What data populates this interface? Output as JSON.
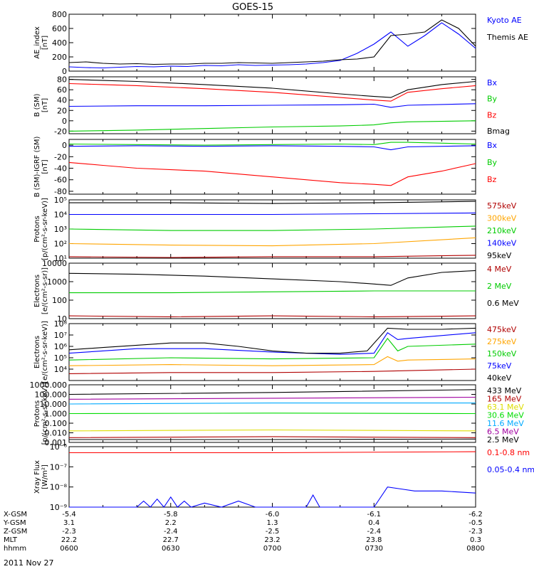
{
  "title": "GOES-15",
  "date": "2011 Nov 27",
  "colors": {
    "black": "#000000",
    "red": "#ff0000",
    "green": "#00cc00",
    "blue": "#0000ff",
    "orange": "#ffa500",
    "darkred": "#b00000",
    "yellow": "#dddd00",
    "lightgreen": "#00dd00",
    "cyan": "#00aaff",
    "purple": "#a000a0"
  },
  "ephemeris": {
    "row_labels": [
      "X-GSM",
      "Y-GSM",
      "Z-GSM",
      "MLT",
      "hhmm"
    ],
    "columns": [
      [
        "-5.4",
        "3.1",
        "-2.3",
        "22.2",
        "0600"
      ],
      [
        "-5.8",
        "2.2",
        "-2.4",
        "22.7",
        "0630"
      ],
      [
        "-6.0",
        "1.3",
        "-2.5",
        "23.2",
        "0700"
      ],
      [
        "-6.1",
        "0.4",
        "-2.4",
        "23.8",
        "0730"
      ],
      [
        "-6.2",
        "-0.5",
        "-2.3",
        "0.3",
        "0800"
      ]
    ]
  },
  "chart_data": [
    {
      "type": "line",
      "ylabel": [
        "AE_index",
        "[nT]"
      ],
      "ylim": [
        0,
        800
      ],
      "yticks": [
        {
          "v": 0,
          "t": "0"
        },
        {
          "v": 200,
          "t": "200"
        },
        {
          "v": 400,
          "t": "400"
        },
        {
          "v": 600,
          "t": "600"
        },
        {
          "v": 800,
          "t": "800"
        }
      ],
      "series": [
        {
          "name": "Kyoto AE",
          "color": "#0000ff",
          "x": [
            0,
            5,
            10,
            15,
            20,
            25,
            30,
            35,
            40,
            45,
            50,
            55,
            60,
            65,
            70,
            75,
            80,
            85,
            90,
            95,
            100,
            105,
            110,
            115,
            120
          ],
          "values": [
            60,
            50,
            45,
            55,
            65,
            60,
            70,
            65,
            80,
            75,
            90,
            80,
            85,
            90,
            100,
            120,
            150,
            250,
            380,
            550,
            350,
            500,
            680,
            520,
            320
          ]
        },
        {
          "name": "Themis AE",
          "color": "#000000",
          "x": [
            0,
            5,
            10,
            15,
            20,
            25,
            30,
            35,
            40,
            45,
            50,
            55,
            60,
            65,
            70,
            75,
            80,
            85,
            90,
            95,
            100,
            105,
            110,
            115,
            120
          ],
          "values": [
            120,
            130,
            110,
            100,
            105,
            95,
            100,
            100,
            110,
            110,
            120,
            115,
            110,
            120,
            130,
            140,
            160,
            170,
            200,
            500,
            520,
            550,
            720,
            600,
            350
          ]
        }
      ]
    },
    {
      "type": "line",
      "ylabel": [
        "B (SM)",
        "[nT]"
      ],
      "ylim": [
        -25,
        85
      ],
      "yticks": [
        {
          "v": -20,
          "t": "-20"
        },
        {
          "v": 0,
          "t": "0"
        },
        {
          "v": 20,
          "t": "20"
        },
        {
          "v": 40,
          "t": "40"
        },
        {
          "v": 60,
          "t": "60"
        },
        {
          "v": 80,
          "t": "80"
        }
      ],
      "series": [
        {
          "name": "Bx",
          "color": "#0000ff",
          "x": [
            0,
            20,
            40,
            60,
            80,
            90,
            95,
            100,
            120
          ],
          "values": [
            28,
            29,
            29,
            30,
            31,
            32,
            26,
            30,
            33
          ]
        },
        {
          "name": "By",
          "color": "#00cc00",
          "x": [
            0,
            20,
            40,
            60,
            80,
            90,
            95,
            100,
            120
          ],
          "values": [
            -20,
            -18,
            -15,
            -12,
            -10,
            -8,
            -4,
            -2,
            0
          ]
        },
        {
          "name": "Bz",
          "color": "#ff0000",
          "x": [
            0,
            10,
            20,
            40,
            60,
            80,
            90,
            95,
            100,
            110,
            120
          ],
          "values": [
            72,
            70,
            68,
            62,
            55,
            45,
            40,
            38,
            55,
            62,
            68
          ]
        },
        {
          "name": "Bmag",
          "color": "#000000",
          "x": [
            0,
            10,
            20,
            40,
            60,
            80,
            90,
            95,
            100,
            110,
            120
          ],
          "values": [
            80,
            78,
            76,
            70,
            63,
            52,
            47,
            45,
            60,
            70,
            76
          ]
        }
      ]
    },
    {
      "type": "line",
      "ylabel": [
        "B (SM)-IGRF (SM)",
        "[nT]"
      ],
      "ylim": [
        -85,
        10
      ],
      "yticks": [
        {
          "v": -80,
          "t": "-80"
        },
        {
          "v": -60,
          "t": "-60"
        },
        {
          "v": -40,
          "t": "-40"
        },
        {
          "v": -20,
          "t": "-20"
        },
        {
          "v": 0,
          "t": "0"
        }
      ],
      "series": [
        {
          "name": "Bx",
          "color": "#0000ff",
          "x": [
            0,
            20,
            40,
            60,
            80,
            90,
            95,
            100,
            120
          ],
          "values": [
            -2,
            -1,
            -2,
            -1,
            -2,
            -3,
            -8,
            -3,
            -1
          ]
        },
        {
          "name": "By",
          "color": "#00cc00",
          "x": [
            0,
            20,
            40,
            60,
            80,
            90,
            95,
            100,
            120
          ],
          "values": [
            2,
            1,
            0,
            1,
            2,
            1,
            5,
            5,
            2
          ]
        },
        {
          "name": "Bz",
          "color": "#ff0000",
          "x": [
            0,
            10,
            20,
            40,
            60,
            80,
            90,
            95,
            100,
            110,
            120
          ],
          "values": [
            -30,
            -35,
            -40,
            -45,
            -55,
            -65,
            -68,
            -70,
            -55,
            -45,
            -32
          ]
        }
      ]
    },
    {
      "type": "line",
      "log": true,
      "ylabel": [
        "Protons",
        "[p/(cm²-s-sr-keV)]"
      ],
      "ylim": [
        1,
        5
      ],
      "yticks": [
        {
          "v": 1,
          "t": "10¹"
        },
        {
          "v": 2,
          "t": "10²"
        },
        {
          "v": 3,
          "t": "10³"
        },
        {
          "v": 4,
          "t": "10⁴"
        },
        {
          "v": 5,
          "t": "10⁵"
        }
      ],
      "series": [
        {
          "name": "575keV",
          "color": "#b00000",
          "x": [
            0,
            30,
            60,
            90,
            120
          ],
          "values": [
            1.1,
            1.05,
            1.1,
            1.1,
            1.2
          ]
        },
        {
          "name": "300keV",
          "color": "#ffa500",
          "x": [
            0,
            30,
            60,
            90,
            120
          ],
          "values": [
            2.0,
            1.9,
            1.85,
            2.0,
            2.4
          ]
        },
        {
          "name": "210keV",
          "color": "#00cc00",
          "x": [
            0,
            30,
            60,
            90,
            120
          ],
          "values": [
            3.0,
            2.9,
            2.9,
            3.0,
            3.2
          ]
        },
        {
          "name": "140keV",
          "color": "#0000ff",
          "x": [
            0,
            30,
            60,
            90,
            120
          ],
          "values": [
            4.0,
            4.0,
            4.0,
            4.05,
            4.1
          ]
        },
        {
          "name": "95keV",
          "color": "#000000",
          "x": [
            0,
            30,
            60,
            90,
            120
          ],
          "values": [
            4.8,
            4.8,
            4.75,
            4.8,
            4.9
          ]
        }
      ]
    },
    {
      "type": "line",
      "log": true,
      "ylabel": [
        "Electrons",
        "[e/(cm²-s-sr)]"
      ],
      "ylim": [
        1,
        4
      ],
      "yticks": [
        {
          "v": 1,
          "t": "10"
        },
        {
          "v": 2,
          "t": "100"
        },
        {
          "v": 3,
          "t": "1000"
        },
        {
          "v": 4,
          "t": "10000"
        }
      ],
      "series": [
        {
          "name": "4 MeV",
          "color": "#b00000",
          "x": [
            0,
            30,
            60,
            90,
            120
          ],
          "values": [
            1.15,
            1.1,
            1.15,
            1.1,
            1.15
          ]
        },
        {
          "name": "2 MeV",
          "color": "#00cc00",
          "x": [
            0,
            30,
            60,
            90,
            120
          ],
          "values": [
            2.4,
            2.4,
            2.45,
            2.5,
            2.5
          ]
        },
        {
          "name": "0.6 MeV",
          "color": "#000000",
          "x": [
            0,
            20,
            40,
            60,
            80,
            88,
            95,
            100,
            110,
            120
          ],
          "values": [
            3.45,
            3.4,
            3.3,
            3.15,
            3.0,
            2.9,
            2.8,
            3.2,
            3.5,
            3.6
          ]
        }
      ]
    },
    {
      "type": "line",
      "log": true,
      "ylabel": [
        "Electrons",
        "[e/(cm²-s-sr-keV)]"
      ],
      "ylim": [
        3,
        8
      ],
      "yticks": [
        {
          "v": 4,
          "t": "10⁴"
        },
        {
          "v": 5,
          "t": "10⁵"
        },
        {
          "v": 6,
          "t": "10⁶"
        },
        {
          "v": 7,
          "t": "10⁷"
        },
        {
          "v": 8,
          "t": "10⁸"
        }
      ],
      "series": [
        {
          "name": "475keV",
          "color": "#b00000",
          "x": [
            0,
            30,
            60,
            90,
            120
          ],
          "values": [
            3.6,
            3.7,
            3.7,
            3.8,
            4.0
          ]
        },
        {
          "name": "275keV",
          "color": "#ffa500",
          "x": [
            0,
            30,
            60,
            90,
            94,
            97,
            100,
            120
          ],
          "values": [
            4.3,
            4.4,
            4.3,
            4.4,
            5.1,
            4.7,
            4.8,
            4.9
          ]
        },
        {
          "name": "150keV",
          "color": "#00cc00",
          "x": [
            0,
            30,
            60,
            90,
            94,
            97,
            100,
            120
          ],
          "values": [
            4.8,
            5.0,
            4.9,
            5.0,
            6.7,
            5.6,
            6.0,
            6.2
          ]
        },
        {
          "name": "75keV",
          "color": "#0000ff",
          "x": [
            0,
            20,
            40,
            60,
            80,
            90,
            94,
            97,
            100,
            120
          ],
          "values": [
            5.4,
            5.8,
            5.8,
            5.5,
            5.3,
            5.4,
            7.2,
            6.6,
            6.7,
            7.2
          ]
        },
        {
          "name": "40keV",
          "color": "#000000",
          "x": [
            0,
            10,
            20,
            30,
            40,
            50,
            60,
            70,
            80,
            88,
            94,
            100,
            110,
            120
          ],
          "values": [
            5.7,
            5.9,
            6.1,
            6.3,
            6.3,
            6.0,
            5.6,
            5.4,
            5.4,
            5.6,
            7.6,
            7.5,
            7.5,
            7.6
          ]
        }
      ]
    },
    {
      "type": "line",
      "log": true,
      "ylabel": [
        "Protons",
        "[p/(cm²-s-sr-keV)]"
      ],
      "ylim": [
        -3,
        3
      ],
      "yticks": [
        {
          "v": -3,
          "t": "0.001"
        },
        {
          "v": -2,
          "t": "0.010"
        },
        {
          "v": -1,
          "t": "0.100"
        },
        {
          "v": 0,
          "t": "1.000"
        },
        {
          "v": 1,
          "t": "10.000"
        },
        {
          "v": 2,
          "t": "100.000"
        },
        {
          "v": 3,
          "t": "1000.000"
        }
      ],
      "series": [
        {
          "name": "433 MeV",
          "color": "#000000",
          "x": [
            0,
            60,
            120
          ],
          "values": [
            2.0,
            2.2,
            2.5
          ]
        },
        {
          "name": "165 MeV",
          "color": "#b00000",
          "x": [
            0,
            60,
            120
          ],
          "values": [
            -2.5,
            -2.4,
            -2.5
          ]
        },
        {
          "name": "63.1 MeV",
          "color": "#dddd00",
          "x": [
            0,
            60,
            120
          ],
          "values": [
            -1.8,
            -1.7,
            -1.8
          ]
        },
        {
          "name": "30.6 MeV",
          "color": "#00dd00",
          "x": [
            0,
            60,
            120
          ],
          "values": [
            0,
            0.05,
            0
          ]
        },
        {
          "name": "11.6 MeV",
          "color": "#00aaff",
          "x": [
            0,
            60,
            120
          ],
          "values": [
            1.0,
            1.1,
            1.1
          ]
        },
        {
          "name": "6.5 MeV",
          "color": "#a000a0",
          "x": [
            0,
            60,
            120
          ],
          "values": [
            1.5,
            1.6,
            1.7
          ]
        },
        {
          "name": "2.5 MeV",
          "color": "#000000",
          "x": [
            0,
            60,
            120
          ],
          "values": [
            -2.7,
            -2.7,
            -2.65
          ]
        }
      ]
    },
    {
      "type": "line",
      "log": true,
      "ylabel": [
        "Xray Flux",
        "[W/m²]"
      ],
      "ylim": [
        -9,
        -6
      ],
      "yticks": [
        {
          "v": -9,
          "t": "10⁻⁹"
        },
        {
          "v": -8,
          "t": "10⁻⁸"
        },
        {
          "v": -7,
          "t": "10⁻⁷"
        },
        {
          "v": -6,
          "t": "10⁻⁶"
        }
      ],
      "series": [
        {
          "name": "0.1-0.8 nm",
          "color": "#ff0000",
          "x": [
            0,
            60,
            120
          ],
          "values": [
            -6.3,
            -6.3,
            -6.25
          ]
        },
        {
          "name": "0.05-0.4 nm",
          "color": "#0000ff",
          "x": [
            0,
            20,
            22,
            24,
            26,
            28,
            30,
            32,
            34,
            36,
            40,
            45,
            50,
            55,
            70,
            72,
            74,
            90,
            94,
            98,
            102,
            110,
            120
          ],
          "values": [
            -9,
            -9,
            -8.7,
            -9,
            -8.6,
            -9,
            -8.5,
            -9,
            -8.7,
            -9,
            -8.8,
            -9,
            -8.7,
            -9,
            -9,
            -8.4,
            -9,
            -9,
            -8.0,
            -8.1,
            -8.2,
            -8.2,
            -8.3
          ]
        }
      ]
    }
  ]
}
